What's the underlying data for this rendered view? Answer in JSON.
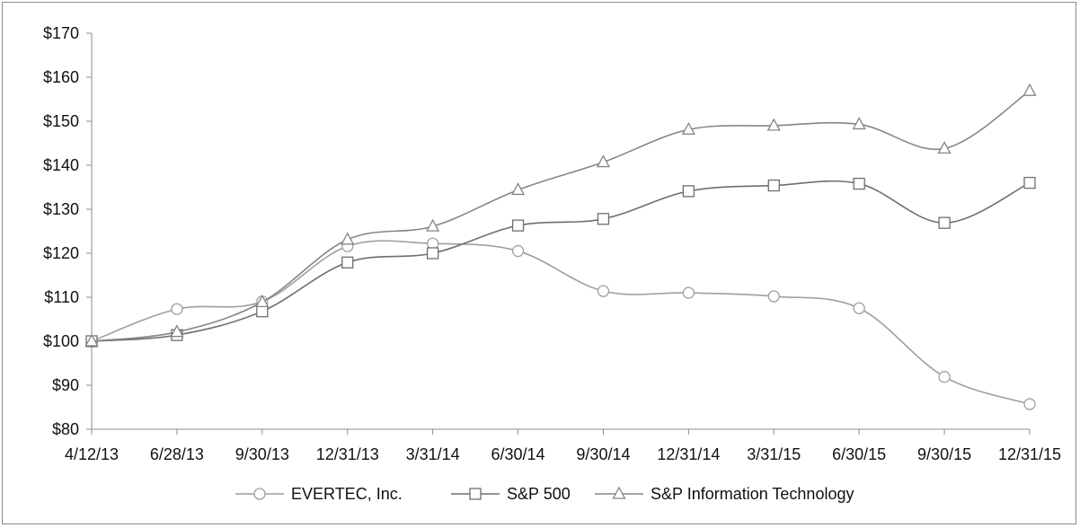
{
  "chart_data": {
    "type": "line",
    "title": "",
    "xlabel": "",
    "ylabel": "",
    "categories": [
      "4/12/13",
      "6/28/13",
      "9/30/13",
      "12/31/13",
      "3/31/14",
      "6/30/14",
      "9/30/14",
      "12/31/14",
      "3/31/15",
      "6/30/15",
      "9/30/15",
      "12/31/15"
    ],
    "y_ticks": [
      "$80",
      "$90",
      "$100",
      "$110",
      "$120",
      "$130",
      "$140",
      "$150",
      "$160",
      "$170"
    ],
    "ylim": [
      80,
      170
    ],
    "grid": false,
    "legend_position": "bottom",
    "series": [
      {
        "name": "EVERTEC, Inc.",
        "marker": "circle",
        "color": "#9e9e9e",
        "values": [
          100,
          107.3,
          109.0,
          121.6,
          122.2,
          120.5,
          111.4,
          111.0,
          110.2,
          107.5,
          91.9,
          85.7
        ]
      },
      {
        "name": "S&P 500",
        "marker": "square",
        "color": "#6e6e6e",
        "values": [
          100,
          101.4,
          106.8,
          117.9,
          120.0,
          126.3,
          127.8,
          134.1,
          135.4,
          135.8,
          126.9,
          136.0
        ]
      },
      {
        "name": "S&P Information Technology",
        "marker": "triangle",
        "color": "#858585",
        "values": [
          100,
          102.1,
          108.9,
          123.1,
          126.1,
          134.4,
          140.7,
          148.1,
          149.0,
          149.3,
          143.8,
          156.9
        ]
      }
    ]
  }
}
